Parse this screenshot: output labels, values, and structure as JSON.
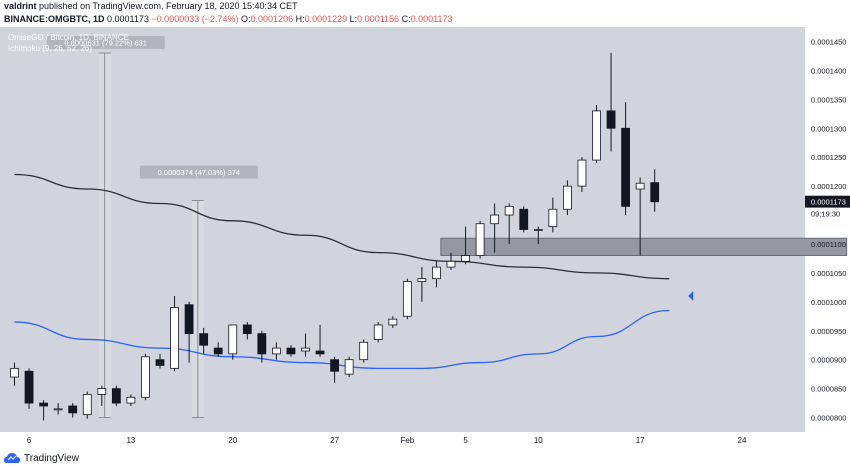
{
  "header": {
    "line1": {
      "user": "valdrint",
      "published_text": "published on TradingView.com, February 18, 2020 15:40:34 CET"
    },
    "line2": {
      "symbol": "BINANCE:OMGBTC, 1D",
      "last": "0.0001173",
      "change": "−0.0000033 (−2.74%)",
      "o_label": "O:",
      "o": "0.0001206",
      "h_label": "H:",
      "h": "0.0001229",
      "l_label": "L:",
      "l": "0.0001156",
      "c_label": "C:",
      "c": "0.0001173"
    }
  },
  "legend": {
    "series_title": "OmiseGO / Bitcoin, 1D, BINANCE",
    "indicator": "Ichimoku (9, 26, 52, 26)"
  },
  "price_label": {
    "value": "0.0001173",
    "countdown": "09:19:30"
  },
  "footer": {
    "brand": "TradingView"
  },
  "colors": {
    "background": "#d1d4dc",
    "bull_body": "#ffffff",
    "bear_body": "#131722",
    "ma_dark": "#2a2e39",
    "ma_blue": "#2962ff",
    "zone": "#9598a1",
    "measure_box": "#b2b5be",
    "arrow": "#2962ff"
  },
  "chart_data": {
    "type": "candlestick",
    "ylim": [
      7.75e-05,
      0.0001475
    ],
    "y_ticks": [
      "0.0001450",
      "0.0001400",
      "0.0001350",
      "0.0001300",
      "0.0001250",
      "0.0001200",
      "0.0001150",
      "0.0001100",
      "0.0001050",
      "0.0001000",
      "0.0000950",
      "0.0000900",
      "0.0000850",
      "0.0000800"
    ],
    "x_ticks": [
      {
        "label": "6",
        "i": 1
      },
      {
        "label": "13",
        "i": 8
      },
      {
        "label": "20",
        "i": 15
      },
      {
        "label": "27",
        "i": 22
      },
      {
        "label": "Feb",
        "i": 27
      },
      {
        "label": "5",
        "i": 31
      },
      {
        "label": "10",
        "i": 36
      },
      {
        "label": "17",
        "i": 43
      },
      {
        "label": "24",
        "i": 50
      }
    ],
    "candles": [
      {
        "o": 8.7e-05,
        "h": 8.95e-05,
        "l": 8.55e-05,
        "c": 8.85e-05
      },
      {
        "o": 8.8e-05,
        "h": 8.85e-05,
        "l": 8.15e-05,
        "c": 8.25e-05
      },
      {
        "o": 8.25e-05,
        "h": 8.3e-05,
        "l": 7.95e-05,
        "c": 8.2e-05
      },
      {
        "o": 8.15e-05,
        "h": 8.25e-05,
        "l": 8.05e-05,
        "c": 8.15e-05
      },
      {
        "o": 8.2e-05,
        "h": 8.25e-05,
        "l": 8e-05,
        "c": 8.08e-05
      },
      {
        "o": 8.05e-05,
        "h": 8.45e-05,
        "l": 7.98e-05,
        "c": 8.4e-05
      },
      {
        "o": 8.4e-05,
        "h": 8.55e-05,
        "l": 8.2e-05,
        "c": 8.5e-05
      },
      {
        "o": 8.5e-05,
        "h": 8.55e-05,
        "l": 8.2e-05,
        "c": 8.25e-05
      },
      {
        "o": 8.25e-05,
        "h": 8.4e-05,
        "l": 8.2e-05,
        "c": 8.35e-05
      },
      {
        "o": 8.35e-05,
        "h": 9.1e-05,
        "l": 8.3e-05,
        "c": 9.05e-05
      },
      {
        "o": 9e-05,
        "h": 9.1e-05,
        "l": 8.85e-05,
        "c": 8.9e-05
      },
      {
        "o": 8.85e-05,
        "h": 0.000101,
        "l": 8.8e-05,
        "c": 9.9e-05
      },
      {
        "o": 9.95e-05,
        "h": 0.0001,
        "l": 8.95e-05,
        "c": 9.45e-05
      },
      {
        "o": 9.45e-05,
        "h": 9.55e-05,
        "l": 9.1e-05,
        "c": 9.25e-05
      },
      {
        "o": 9.2e-05,
        "h": 9.3e-05,
        "l": 9.05e-05,
        "c": 9.1e-05
      },
      {
        "o": 9.1e-05,
        "h": 9.6e-05,
        "l": 9e-05,
        "c": 9.6e-05
      },
      {
        "o": 9.6e-05,
        "h": 9.65e-05,
        "l": 9.35e-05,
        "c": 9.45e-05
      },
      {
        "o": 9.45e-05,
        "h": 9.5e-05,
        "l": 8.95e-05,
        "c": 9.1e-05
      },
      {
        "o": 9.1e-05,
        "h": 9.3e-05,
        "l": 9e-05,
        "c": 9.2e-05
      },
      {
        "o": 9.2e-05,
        "h": 9.25e-05,
        "l": 9.05e-05,
        "c": 9.1e-05
      },
      {
        "o": 9.15e-05,
        "h": 9.45e-05,
        "l": 9.05e-05,
        "c": 9.2e-05
      },
      {
        "o": 9.15e-05,
        "h": 9.6e-05,
        "l": 9.05e-05,
        "c": 9.1e-05
      },
      {
        "o": 9e-05,
        "h": 9.05e-05,
        "l": 8.6e-05,
        "c": 8.8e-05
      },
      {
        "o": 8.75e-05,
        "h": 9.05e-05,
        "l": 8.7e-05,
        "c": 9e-05
      },
      {
        "o": 9e-05,
        "h": 9.35e-05,
        "l": 8.95e-05,
        "c": 9.3e-05
      },
      {
        "o": 9.35e-05,
        "h": 9.65e-05,
        "l": 9.3e-05,
        "c": 9.6e-05
      },
      {
        "o": 9.6e-05,
        "h": 9.75e-05,
        "l": 9.55e-05,
        "c": 9.7e-05
      },
      {
        "o": 9.75e-05,
        "h": 0.000104,
        "l": 9.7e-05,
        "c": 0.0001035
      },
      {
        "o": 0.0001035,
        "h": 0.000106,
        "l": 0.0001,
        "c": 0.000104
      },
      {
        "o": 0.000104,
        "h": 0.000107,
        "l": 0.0001025,
        "c": 0.000106
      },
      {
        "o": 0.000106,
        "h": 0.0001085,
        "l": 0.0001055,
        "c": 0.000107
      },
      {
        "o": 0.000107,
        "h": 0.000113,
        "l": 0.0001065,
        "c": 0.000108
      },
      {
        "o": 0.000108,
        "h": 0.000114,
        "l": 0.0001075,
        "c": 0.0001135
      },
      {
        "o": 0.0001135,
        "h": 0.000117,
        "l": 0.0001085,
        "c": 0.000115
      },
      {
        "o": 0.000115,
        "h": 0.000117,
        "l": 0.00011,
        "c": 0.0001165
      },
      {
        "o": 0.000116,
        "h": 0.0001165,
        "l": 0.000112,
        "c": 0.0001125
      },
      {
        "o": 0.0001125,
        "h": 0.000113,
        "l": 0.00011,
        "c": 0.0001125
      },
      {
        "o": 0.000113,
        "h": 0.000118,
        "l": 0.000112,
        "c": 0.000116
      },
      {
        "o": 0.000116,
        "h": 0.000121,
        "l": 0.000115,
        "c": 0.00012
      },
      {
        "o": 0.00012,
        "h": 0.000125,
        "l": 0.000119,
        "c": 0.0001245
      },
      {
        "o": 0.0001245,
        "h": 0.000134,
        "l": 0.000124,
        "c": 0.000133
      },
      {
        "o": 0.000133,
        "h": 0.000143,
        "l": 0.000126,
        "c": 0.00013
      },
      {
        "o": 0.00013,
        "h": 0.0001345,
        "l": 0.000115,
        "c": 0.0001165
      },
      {
        "o": 0.0001195,
        "h": 0.0001215,
        "l": 0.000108,
        "c": 0.0001205
      },
      {
        "o": 0.0001206,
        "h": 0.0001229,
        "l": 0.0001156,
        "c": 0.0001173
      }
    ],
    "ma_dark": [
      [
        0,
        0.000122
      ],
      [
        5,
        0.0001195
      ],
      [
        10,
        0.000117
      ],
      [
        15,
        0.000114
      ],
      [
        20,
        0.0001115
      ],
      [
        25,
        0.0001085
      ],
      [
        30,
        0.000107
      ],
      [
        35,
        0.000106
      ],
      [
        40,
        0.000105
      ],
      [
        45,
        0.000104
      ]
    ],
    "ma_blue": [
      [
        0,
        9.65e-05
      ],
      [
        5,
        9.35e-05
      ],
      [
        10,
        9.2e-05
      ],
      [
        15,
        9.05e-05
      ],
      [
        20,
        8.95e-05
      ],
      [
        25,
        8.85e-05
      ],
      [
        28,
        8.85e-05
      ],
      [
        32,
        8.95e-05
      ],
      [
        36,
        9.1e-05
      ],
      [
        40,
        9.4e-05
      ],
      [
        45,
        9.85e-05
      ]
    ],
    "zone": {
      "i_from": 29.3,
      "i_to": 57.2,
      "low": 0.000108,
      "high": 0.000111
    },
    "measurements": [
      {
        "label": "0.0000631 (79.22%) 631",
        "i": 6.2,
        "low": 8e-05,
        "high": 0.000143
      },
      {
        "label": "0.0000374 (47.03%) 374",
        "i": 12.6,
        "low": 8e-05,
        "high": 0.0001175
      }
    ],
    "arrow_price": 0.000101
  }
}
